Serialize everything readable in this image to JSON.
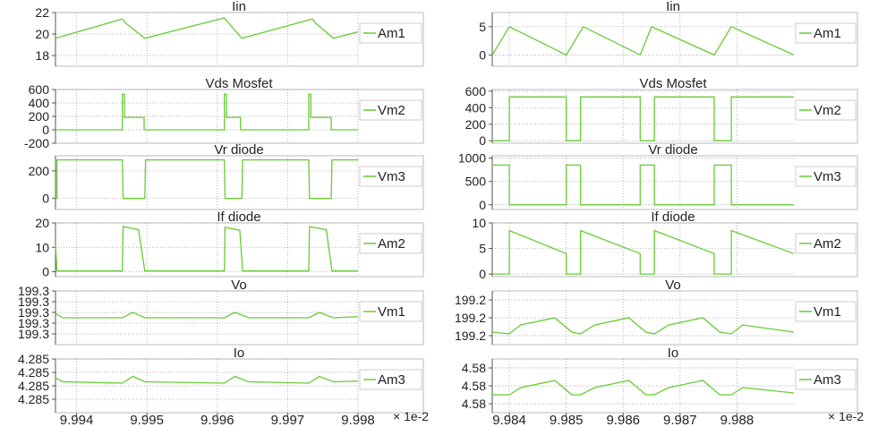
{
  "x_multiplier": "× 1e-2",
  "colors": {
    "trace": "#66cc33",
    "axis": "#555555",
    "grid": "#999999"
  },
  "chart_data": [
    {
      "type": "line",
      "title": "Iin",
      "legend": "Am1",
      "column": "left",
      "ylim": [
        17.0,
        22.0
      ],
      "yticks": [
        18,
        20,
        22
      ],
      "ytick_labels": [
        "18",
        "20",
        "22"
      ],
      "series": [
        {
          "name": "Am1",
          "x": [
            9.9937,
            9.99465,
            9.9947,
            9.99497,
            9.9961,
            9.99615,
            9.99635,
            9.99735,
            9.9974,
            9.99765,
            9.998
          ],
          "y": [
            19.6,
            21.4,
            21.0,
            19.6,
            21.5,
            21.1,
            19.6,
            21.4,
            21.0,
            19.6,
            20.2
          ]
        }
      ]
    },
    {
      "type": "line",
      "title": "Vds Mosfet",
      "legend": "Vm2",
      "column": "left",
      "ylim": [
        -200,
        600
      ],
      "yticks": [
        -200,
        0,
        200,
        400,
        600
      ],
      "ytick_labels": [
        "-200",
        "0",
        "200",
        "400",
        "600"
      ],
      "series": [
        {
          "name": "Vm2",
          "x": [
            9.9937,
            9.99465,
            9.99465,
            9.99468,
            9.99468,
            9.99496,
            9.99496,
            9.9961,
            9.9961,
            9.99613,
            9.99613,
            9.99633,
            9.99633,
            9.9973,
            9.9973,
            9.99733,
            9.99733,
            9.99762,
            9.99762,
            9.998
          ],
          "y": [
            0,
            0,
            530,
            530,
            185,
            185,
            0,
            0,
            530,
            530,
            185,
            185,
            0,
            0,
            530,
            530,
            185,
            185,
            0,
            0
          ]
        }
      ]
    },
    {
      "type": "line",
      "title": "Vr diode",
      "legend": "Vm3",
      "column": "left",
      "ylim": [
        -80,
        310
      ],
      "yticks": [
        0,
        200
      ],
      "ytick_labels": [
        "0",
        "200"
      ],
      "series": [
        {
          "name": "Vm3",
          "x": [
            9.9937,
            9.99372,
            9.99372,
            9.99465,
            9.99466,
            9.99497,
            9.99498,
            9.9961,
            9.99611,
            9.99635,
            9.99636,
            9.9973,
            9.99731,
            9.99762,
            9.99763,
            9.998
          ],
          "y": [
            0,
            0,
            280,
            280,
            0,
            0,
            280,
            280,
            0,
            0,
            280,
            280,
            0,
            0,
            280,
            280
          ]
        }
      ]
    },
    {
      "type": "line",
      "title": "If diode",
      "legend": "Am2",
      "column": "left",
      "ylim": [
        -2,
        20
      ],
      "yticks": [
        0,
        10,
        20
      ],
      "ytick_labels": [
        "0",
        "10",
        "20"
      ],
      "series": [
        {
          "name": "Am2",
          "x": [
            9.9937,
            9.99372,
            9.99465,
            9.99466,
            9.99488,
            9.99497,
            9.9961,
            9.99611,
            9.99632,
            9.99636,
            9.9973,
            9.99731,
            9.99755,
            9.99763,
            9.998
          ],
          "y": [
            11,
            0.3,
            0.3,
            18.5,
            17.2,
            0.3,
            0.3,
            18.2,
            17.0,
            0.3,
            0.3,
            18.5,
            17.2,
            0.3,
            0.3
          ]
        }
      ]
    },
    {
      "type": "line",
      "title": "Vo",
      "legend": "Vm1",
      "column": "left",
      "ylim": [
        0,
        5
      ],
      "yticks": [
        1,
        2,
        3,
        4,
        5
      ],
      "ytick_labels": [
        "199.3",
        "199.3",
        "199.3",
        "199.3",
        "199.3"
      ],
      "y_note": "values plotted on a relative scale because tick labels are rounded to 199.3",
      "series": [
        {
          "name": "Vm1",
          "x": [
            9.9937,
            9.9938,
            9.99465,
            9.9948,
            9.99497,
            9.9961,
            9.99625,
            9.99645,
            9.9973,
            9.99745,
            9.99765,
            9.998
          ],
          "y": [
            2.9,
            2.5,
            2.5,
            3.0,
            2.5,
            2.5,
            3.0,
            2.5,
            2.5,
            3.0,
            2.5,
            2.6
          ]
        }
      ]
    },
    {
      "type": "line",
      "title": "Io",
      "legend": "Am3",
      "column": "left",
      "ylim": [
        0,
        4
      ],
      "yticks": [
        1,
        2,
        3,
        4
      ],
      "ytick_labels": [
        "4.285",
        "4.285",
        "4.285",
        "4.285"
      ],
      "y_note": "values plotted on a relative scale because tick labels are rounded to 4.285",
      "xticks": [
        9.994,
        9.995,
        9.996,
        9.997,
        9.998
      ],
      "xtick_labels": [
        "9.994",
        "9.995",
        "9.996",
        "9.997",
        "9.998"
      ],
      "series": [
        {
          "name": "Am3",
          "x": [
            9.9937,
            9.9938,
            9.99465,
            9.9948,
            9.99497,
            9.9961,
            9.99625,
            9.99645,
            9.9973,
            9.99745,
            9.99765,
            9.998
          ],
          "y": [
            2.6,
            2.3,
            2.2,
            2.7,
            2.3,
            2.2,
            2.7,
            2.3,
            2.2,
            2.7,
            2.3,
            2.35
          ]
        }
      ]
    },
    {
      "type": "line",
      "title": "Iin",
      "legend": "Am1",
      "column": "right",
      "ylim": [
        -2,
        7.5
      ],
      "yticks": [
        0,
        5
      ],
      "ytick_labels": [
        "0",
        "5"
      ],
      "series": [
        {
          "name": "Am1",
          "x": [
            9.9837,
            9.984,
            9.985,
            9.9853,
            9.9863,
            9.9865,
            9.9876,
            9.9879,
            9.989
          ],
          "y": [
            0,
            5,
            0,
            5,
            0,
            5,
            0,
            5,
            0
          ]
        }
      ]
    },
    {
      "type": "line",
      "title": "Vds Mosfet",
      "legend": "Vm2",
      "column": "right",
      "ylim": [
        -30,
        620
      ],
      "yticks": [
        0,
        200,
        400,
        600
      ],
      "ytick_labels": [
        "0",
        "200",
        "400",
        "600"
      ],
      "series": [
        {
          "name": "Vm2",
          "x": [
            9.9837,
            9.984,
            9.984,
            9.985,
            9.985,
            9.98525,
            9.98525,
            9.9863,
            9.9863,
            9.98655,
            9.98655,
            9.9876,
            9.9876,
            9.9879,
            9.9879,
            9.989
          ],
          "y": [
            0,
            0,
            530,
            530,
            0,
            0,
            530,
            530,
            0,
            0,
            530,
            530,
            0,
            0,
            530,
            530
          ]
        }
      ]
    },
    {
      "type": "line",
      "title": "Vr diode",
      "legend": "Vm3",
      "column": "right",
      "ylim": [
        -100,
        1050
      ],
      "yticks": [
        0,
        500,
        1000
      ],
      "ytick_labels": [
        "0",
        "500",
        "1000"
      ],
      "series": [
        {
          "name": "Vm3",
          "x": [
            9.9837,
            9.984,
            9.984,
            9.985,
            9.985,
            9.98525,
            9.98525,
            9.9863,
            9.9863,
            9.98655,
            9.98655,
            9.9876,
            9.9876,
            9.9879,
            9.9879,
            9.989
          ],
          "y": [
            850,
            850,
            0,
            0,
            850,
            850,
            0,
            0,
            850,
            850,
            0,
            0,
            850,
            850,
            0,
            0
          ]
        }
      ]
    },
    {
      "type": "line",
      "title": "If diode",
      "legend": "Am2",
      "column": "right",
      "ylim": [
        -0.5,
        10
      ],
      "yticks": [
        0,
        5,
        10
      ],
      "ytick_labels": [
        "0",
        "5",
        "10"
      ],
      "series": [
        {
          "name": "Am2",
          "x": [
            9.9837,
            9.984,
            9.984,
            9.985,
            9.985,
            9.98525,
            9.98525,
            9.9863,
            9.9863,
            9.98655,
            9.98655,
            9.9876,
            9.9876,
            9.9879,
            9.9879,
            9.989
          ],
          "y": [
            0,
            0,
            8.5,
            4,
            0,
            0,
            8.5,
            4,
            0,
            0,
            8.5,
            4,
            0,
            0,
            8.5,
            4
          ]
        }
      ]
    },
    {
      "type": "line",
      "title": "Vo",
      "legend": "Vm1",
      "column": "right",
      "ylim": [
        0,
        3
      ],
      "yticks": [
        0.5,
        1.5,
        2.5
      ],
      "ytick_labels": [
        "199.2",
        "199.2",
        "199.2"
      ],
      "y_note": "values plotted on a relative scale because tick labels are rounded to 199.2",
      "series": [
        {
          "name": "Vm1",
          "x": [
            9.9837,
            9.984,
            9.9842,
            9.9848,
            9.9851,
            9.98525,
            9.9855,
            9.9861,
            9.9864,
            9.98655,
            9.9868,
            9.9874,
            9.9877,
            9.9879,
            9.9881,
            9.989
          ],
          "y": [
            0.7,
            0.6,
            1.1,
            1.5,
            0.7,
            0.6,
            1.1,
            1.5,
            0.7,
            0.6,
            1.1,
            1.5,
            0.7,
            0.6,
            1.1,
            0.7
          ]
        }
      ]
    },
    {
      "type": "line",
      "title": "Io",
      "legend": "Am3",
      "column": "right",
      "ylim": [
        0,
        3
      ],
      "yticks": [
        0.5,
        1.5,
        2.5
      ],
      "ytick_labels": [
        "4.58",
        "4.58",
        "4.58"
      ],
      "y_note": "values plotted on a relative scale because tick labels are rounded to 4.58",
      "xticks": [
        9.984,
        9.985,
        9.986,
        9.987,
        9.988
      ],
      "xtick_labels": [
        "9.984",
        "9.985",
        "9.986",
        "9.987",
        "9.988"
      ],
      "series": [
        {
          "name": "Am3",
          "x": [
            9.9837,
            9.984,
            9.9842,
            9.9848,
            9.9851,
            9.98525,
            9.9855,
            9.9861,
            9.9864,
            9.98655,
            9.9868,
            9.9874,
            9.9877,
            9.9879,
            9.9881,
            9.989
          ],
          "y": [
            1.0,
            1.0,
            1.4,
            1.8,
            1.0,
            1.0,
            1.4,
            1.8,
            1.0,
            1.0,
            1.4,
            1.8,
            1.0,
            1.0,
            1.4,
            1.1
          ]
        }
      ]
    }
  ]
}
